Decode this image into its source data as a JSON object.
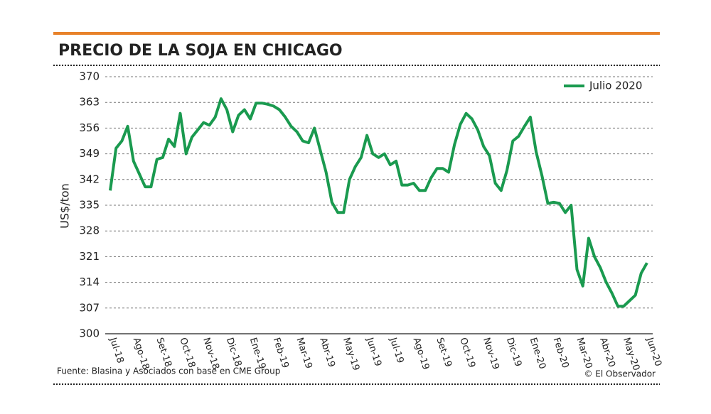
{
  "chart_data": {
    "type": "line",
    "title": "PRECIO DE LA SOJA EN CHICAGO",
    "y_label": "US$/ton",
    "source": "Fuente: Blasina y Asociados con base en CME Group",
    "credit": "© El Observador",
    "legend": "top-right",
    "grid": true,
    "ylim": [
      300,
      370
    ],
    "yticks": [
      300,
      307,
      314,
      321,
      328,
      335,
      342,
      349,
      356,
      363,
      370
    ],
    "categories": [
      "Jul-18",
      null,
      null,
      null,
      "Ago-18",
      null,
      null,
      null,
      "Set-18",
      null,
      null,
      null,
      "Oct-18",
      null,
      null,
      null,
      "Nov-18",
      null,
      null,
      null,
      "Dic-18",
      null,
      null,
      null,
      "Ene-19",
      null,
      null,
      null,
      "Feb-19",
      null,
      null,
      null,
      "Mar-19",
      null,
      null,
      null,
      "Abr-19",
      null,
      null,
      null,
      "May-19",
      null,
      null,
      null,
      "Jun-19",
      null,
      null,
      null,
      "Jul-19",
      null,
      null,
      null,
      "Ago-19",
      null,
      null,
      null,
      "Set-19",
      null,
      null,
      null,
      "Oct-19",
      null,
      null,
      null,
      "Nov-19",
      null,
      null,
      null,
      "Dic-19",
      null,
      null,
      null,
      "Ene-20",
      null,
      null,
      null,
      "Feb-20",
      null,
      null,
      null,
      "Mar-20",
      null,
      null,
      null,
      "Abr-20",
      null,
      null,
      null,
      "May-20",
      null,
      null,
      null,
      "Jun-20"
    ],
    "series": [
      {
        "name": "Julio 2020",
        "color": "#1a9a4f",
        "values": [
          339,
          350.5,
          352.5,
          356.5,
          347,
          343.5,
          340,
          340,
          347.5,
          348,
          353,
          351,
          360,
          349,
          353.5,
          355.5,
          357.5,
          356.8,
          359,
          364,
          361,
          355,
          359.5,
          361,
          358.5,
          362.8,
          362.8,
          362.5,
          362,
          361,
          359,
          356.5,
          355,
          352.5,
          352,
          356,
          350,
          344,
          335.8,
          333,
          333,
          342,
          345.5,
          348,
          354,
          349,
          348,
          349,
          346,
          347,
          340.5,
          340.5,
          341,
          339,
          339,
          342.5,
          345,
          345,
          344,
          351.5,
          357,
          360,
          358.5,
          355.5,
          351,
          348.5,
          341,
          339,
          344.5,
          352.5,
          353.8,
          356.5,
          359,
          349.5,
          343,
          335.5,
          335.8,
          335.5,
          333,
          335,
          317.5,
          313,
          326,
          321,
          318,
          314,
          311,
          307.5,
          307.5,
          309,
          310.5,
          316.5,
          319.3
        ]
      }
    ]
  }
}
